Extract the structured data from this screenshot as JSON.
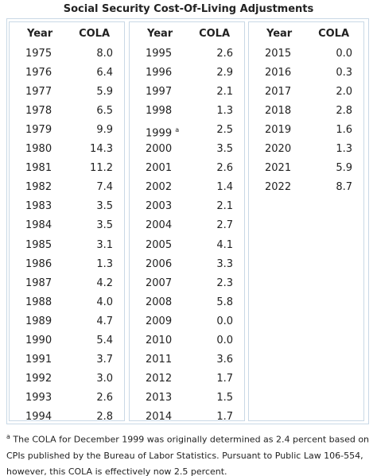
{
  "title": "Social Security Cost-Of-Living Adjustments",
  "tables": [
    {
      "headers": [
        "Year",
        "COLA"
      ],
      "rows": [
        {
          "year": "1975",
          "cola": "8.0"
        },
        {
          "year": "1976",
          "cola": "6.4"
        },
        {
          "year": "1977",
          "cola": "5.9"
        },
        {
          "year": "1978",
          "cola": "6.5"
        },
        {
          "year": "1979",
          "cola": "9.9"
        },
        {
          "year": "1980",
          "cola": "14.3"
        },
        {
          "year": "1981",
          "cola": "11.2"
        },
        {
          "year": "1982",
          "cola": "7.4"
        },
        {
          "year": "1983",
          "cola": "3.5"
        },
        {
          "year": "1984",
          "cola": "3.5"
        },
        {
          "year": "1985",
          "cola": "3.1"
        },
        {
          "year": "1986",
          "cola": "1.3"
        },
        {
          "year": "1987",
          "cola": "4.2"
        },
        {
          "year": "1988",
          "cola": "4.0"
        },
        {
          "year": "1989",
          "cola": "4.7"
        },
        {
          "year": "1990",
          "cola": "5.4"
        },
        {
          "year": "1991",
          "cola": "3.7"
        },
        {
          "year": "1992",
          "cola": "3.0"
        },
        {
          "year": "1993",
          "cola": "2.6"
        },
        {
          "year": "1994",
          "cola": "2.8"
        }
      ]
    },
    {
      "headers": [
        "Year",
        "COLA"
      ],
      "rows": [
        {
          "year": "1995",
          "cola": "2.6"
        },
        {
          "year": "1996",
          "cola": "2.9"
        },
        {
          "year": "1997",
          "cola": "2.1"
        },
        {
          "year": "1998",
          "cola": "1.3"
        },
        {
          "year": "1999",
          "note": "a",
          "cola": "2.5"
        },
        {
          "year": "2000",
          "cola": "3.5"
        },
        {
          "year": "2001",
          "cola": "2.6"
        },
        {
          "year": "2002",
          "cola": "1.4"
        },
        {
          "year": "2003",
          "cola": "2.1"
        },
        {
          "year": "2004",
          "cola": "2.7"
        },
        {
          "year": "2005",
          "cola": "4.1"
        },
        {
          "year": "2006",
          "cola": "3.3"
        },
        {
          "year": "2007",
          "cola": "2.3"
        },
        {
          "year": "2008",
          "cola": "5.8"
        },
        {
          "year": "2009",
          "cola": "0.0"
        },
        {
          "year": "2010",
          "cola": "0.0"
        },
        {
          "year": "2011",
          "cola": "3.6"
        },
        {
          "year": "2012",
          "cola": "1.7"
        },
        {
          "year": "2013",
          "cola": "1.5"
        },
        {
          "year": "2014",
          "cola": "1.7"
        }
      ]
    },
    {
      "headers": [
        "Year",
        "COLA"
      ],
      "rows": [
        {
          "year": "2015",
          "cola": "0.0"
        },
        {
          "year": "2016",
          "cola": "0.3"
        },
        {
          "year": "2017",
          "cola": "2.0"
        },
        {
          "year": "2018",
          "cola": "2.8"
        },
        {
          "year": "2019",
          "cola": "1.6"
        },
        {
          "year": "2020",
          "cola": "1.3"
        },
        {
          "year": "2021",
          "cola": "5.9"
        },
        {
          "year": "2022",
          "cola": "8.7"
        }
      ]
    }
  ],
  "footnote": {
    "marker": "a",
    "text": "The COLA for December 1999 was originally determined as 2.4 percent based on CPIs published by the Bureau of Labor Statistics. Pursuant to Public Law 106-554, however, this COLA is effectively now 2.5 percent."
  }
}
